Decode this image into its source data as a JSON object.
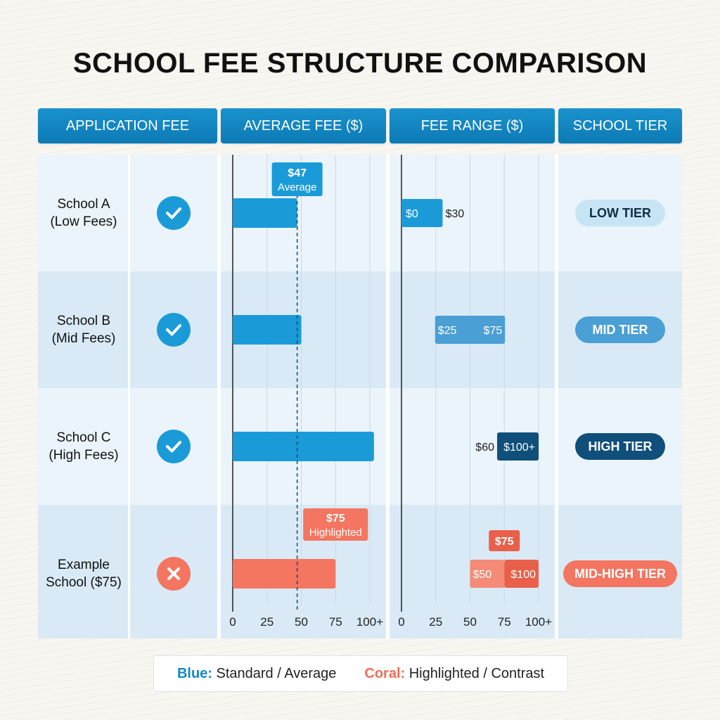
{
  "title": "SCHOOL FEE STRUCTURE COMPARISON",
  "headers": {
    "application_fee": "APPLICATION FEE",
    "average_fee": "AVERAGE FEE ($)",
    "fee_range": "FEE RANGE ($)",
    "school_tier": "SCHOOL TIER"
  },
  "schools": [
    {
      "line1": "School A",
      "line2": "(Low Fees)",
      "status": "check",
      "tier": "LOW TIER"
    },
    {
      "line1": "School B",
      "line2": "(Mid Fees)",
      "status": "check",
      "tier": "MID TIER"
    },
    {
      "line1": "School C",
      "line2": "(High Fees)",
      "status": "check",
      "tier": "HIGH TIER"
    },
    {
      "line1": "Example",
      "line2": "School ($75)",
      "status": "cross",
      "tier": "MID-HIGH TIER"
    }
  ],
  "colors": {
    "blue": "#1a9bd8",
    "coral": "#f47560",
    "dark_blue": "#0f4f7a",
    "mid_blue": "#4a9fd4",
    "light_blue": "#c6e4f4"
  },
  "chart_data": [
    {
      "type": "bar",
      "orientation": "horizontal",
      "categories": [
        "School A (Low Fees)",
        "School B (Mid Fees)",
        "School C (High Fees)",
        "Example School ($75)"
      ],
      "values": [
        47,
        50,
        103,
        75
      ],
      "highlight_index": 3,
      "reference_line": {
        "value": 47,
        "label_value": "$47",
        "label_text": "Average"
      },
      "highlight_label": {
        "value_text": "$75",
        "label_text": "Highlighted"
      },
      "x_ticks": [
        "0",
        "25",
        "50",
        "75",
        "100+"
      ],
      "xlim": [
        0,
        100
      ],
      "grid": true
    },
    {
      "type": "range",
      "categories": [
        "School A (Low Fees)",
        "School B (Mid Fees)",
        "School C (High Fees)",
        "Example School ($75)"
      ],
      "ranges": [
        {
          "low": 0,
          "high": 30,
          "low_label": "$0",
          "high_label": "$30",
          "style": "blue"
        },
        {
          "low": 25,
          "high": 75,
          "low_label": "$25",
          "high_label": "$75",
          "style": "mid"
        },
        {
          "low": 60,
          "high": 100,
          "low_label": "$60",
          "high_label": "$100+",
          "style": "dark"
        },
        {
          "low": 50,
          "high": 100,
          "low_label": "$50",
          "high_label": "$100",
          "style": "coral",
          "marker": 75,
          "marker_label": "$75"
        }
      ],
      "x_ticks": [
        "0",
        "25",
        "50",
        "75",
        "100+"
      ],
      "xlim": [
        0,
        100
      ],
      "grid": true
    }
  ],
  "legend": {
    "blue_key": "Blue:",
    "blue_text": "Standard / Average",
    "coral_key": "Coral:",
    "coral_text": "Highlighted / Contrast"
  }
}
